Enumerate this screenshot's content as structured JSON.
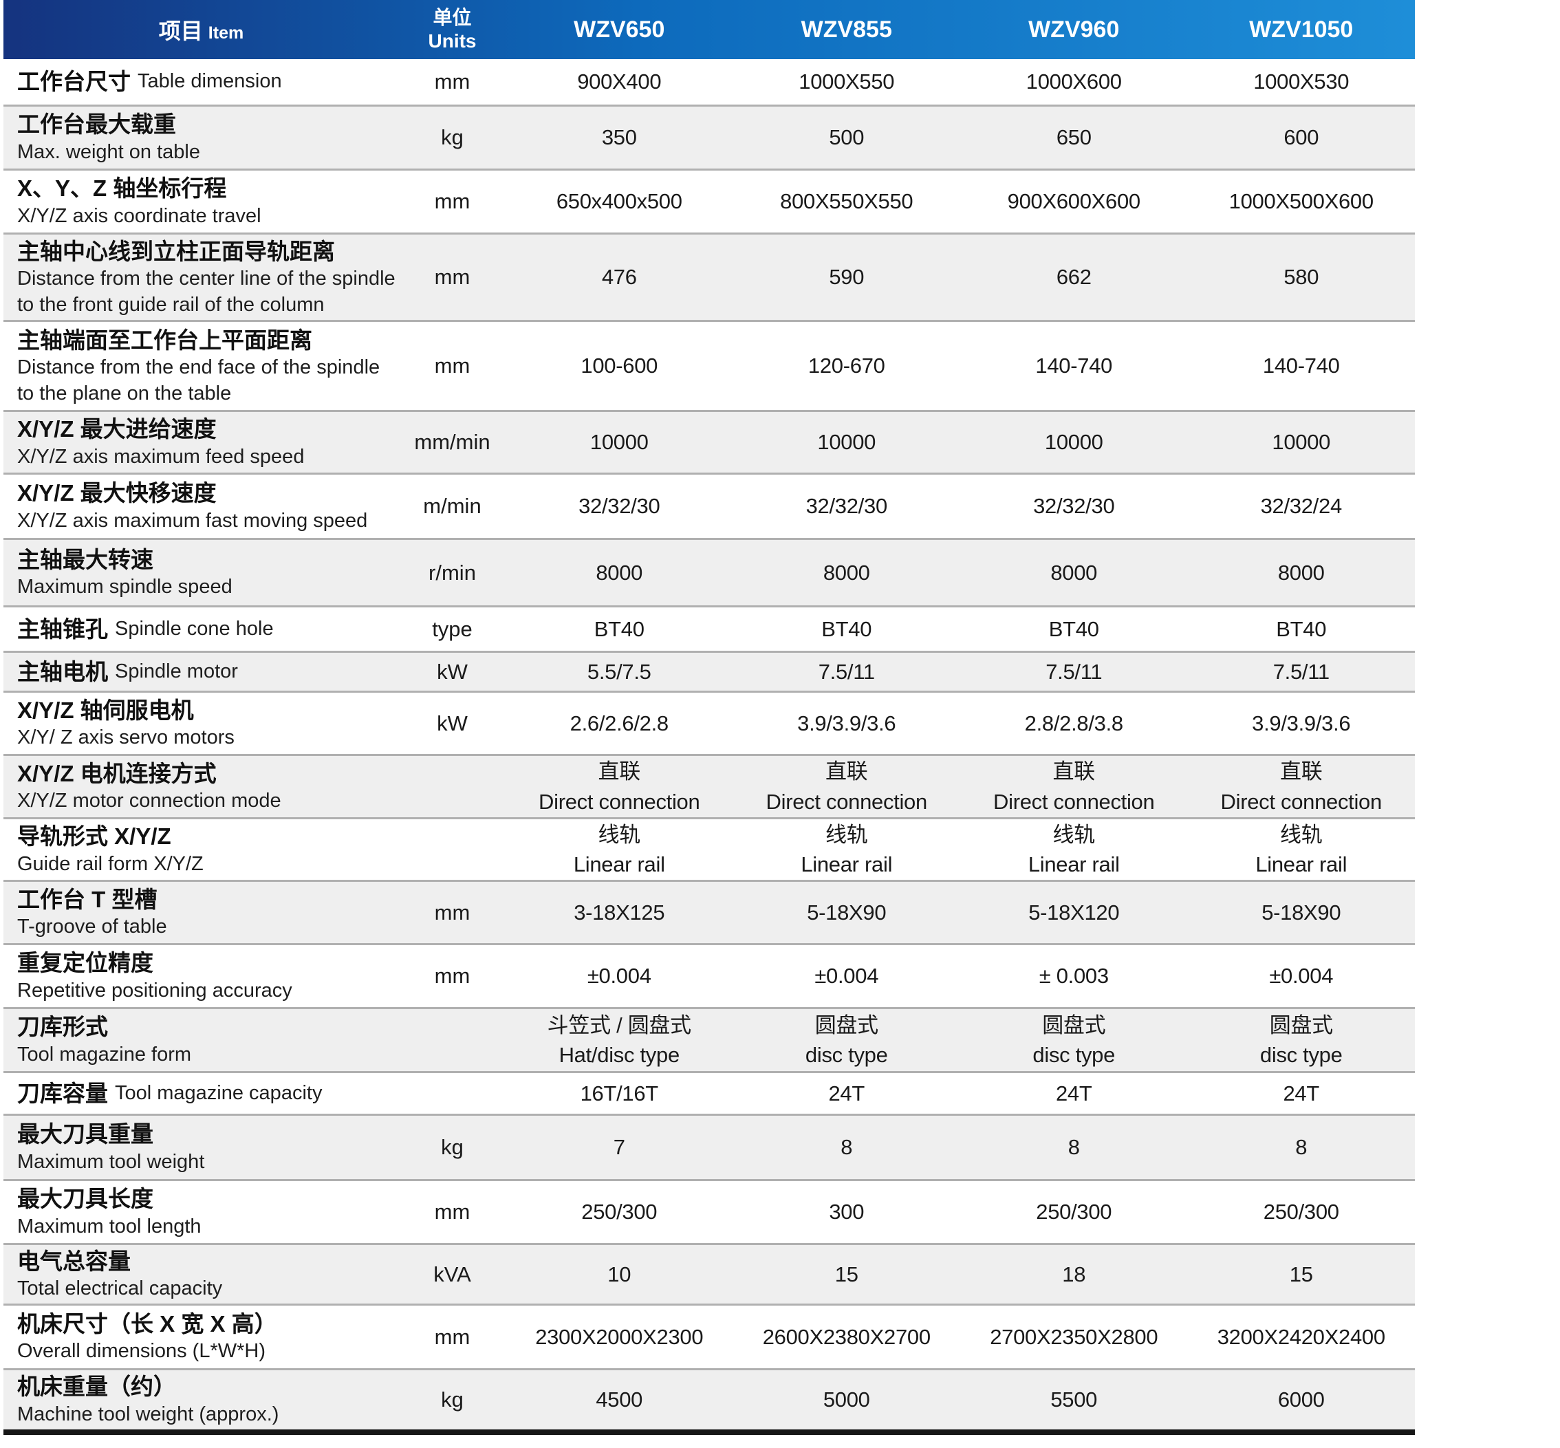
{
  "header": {
    "item_zh": "项目",
    "item_en": "Item",
    "units_zh": "单位",
    "units_en": "Units",
    "models": [
      "WZV650",
      "WZV855",
      "WZV960",
      "WZV1050"
    ]
  },
  "rows": [
    {
      "label_zh": "工作台尺寸",
      "label_en": "Table dimension",
      "unit": "mm",
      "values": [
        "900X400",
        "1000X550",
        "1000X600",
        "1000X530"
      ]
    },
    {
      "label_zh": "工作台最大载重",
      "label_en": "Max. weight on table",
      "unit": "kg",
      "values": [
        "350",
        "500",
        "650",
        "600"
      ]
    },
    {
      "label_zh": "X、Y、Z 轴坐标行程",
      "label_en": "X/Y/Z axis coordinate travel",
      "unit": "mm",
      "values": [
        "650x400x500",
        "800X550X550",
        "900X600X600",
        "1000X500X600"
      ]
    },
    {
      "label_zh": "主轴中心线到立柱正面导轨距离",
      "label_en": "Distance from the center line of the spindle\nto the front guide rail of the column",
      "unit": "mm",
      "values": [
        "476",
        "590",
        "662",
        "580"
      ]
    },
    {
      "label_zh": "主轴端面至工作台上平面距离",
      "label_en": "Distance from the end face of the spindle\nto the plane on the table",
      "unit": "mm",
      "values": [
        "100-600",
        "120-670",
        "140-740",
        "140-740"
      ]
    },
    {
      "label_zh": "X/Y/Z 最大进给速度",
      "label_en": "X/Y/Z axis maximum feed speed",
      "unit": "mm/min",
      "values": [
        "10000",
        "10000",
        "10000",
        "10000"
      ]
    },
    {
      "label_zh": "X/Y/Z 最大快移速度",
      "label_en": "X/Y/Z axis maximum fast moving speed",
      "unit": "m/min",
      "values": [
        "32/32/30",
        "32/32/30",
        "32/32/30",
        "32/32/24"
      ]
    },
    {
      "label_zh": "主轴最大转速",
      "label_en": "Maximum spindle speed",
      "unit": "r/min",
      "values": [
        "8000",
        "8000",
        "8000",
        "8000"
      ]
    },
    {
      "label_zh": "主轴锥孔",
      "label_en": "Spindle cone hole",
      "unit": "type",
      "values": [
        "BT40",
        "BT40",
        "BT40",
        "BT40"
      ]
    },
    {
      "label_zh": "主轴电机",
      "label_en": "Spindle motor",
      "unit": "kW",
      "values": [
        "5.5/7.5",
        "7.5/11",
        "7.5/11",
        "7.5/11"
      ]
    },
    {
      "label_zh": "X/Y/Z 轴伺服电机",
      "label_en": "X/Y/ Z axis servo motors",
      "unit": "kW",
      "values": [
        "2.6/2.6/2.8",
        "3.9/3.9/3.6",
        "2.8/2.8/3.8",
        "3.9/3.9/3.6"
      ]
    },
    {
      "label_zh": "X/Y/Z 电机连接方式",
      "label_en": "X/Y/Z motor connection mode",
      "unit": "",
      "values": [
        "直联\nDirect connection",
        "直联\nDirect connection",
        "直联\nDirect connection",
        "直联\nDirect connection"
      ]
    },
    {
      "label_zh": "导轨形式 X/Y/Z",
      "label_en": "Guide rail form X/Y/Z",
      "unit": "",
      "values": [
        "线轨\nLinear rail",
        "线轨\nLinear rail",
        "线轨\nLinear rail",
        "线轨\nLinear rail"
      ]
    },
    {
      "label_zh": "工作台 T 型槽",
      "label_en": "T-groove of table",
      "unit": "mm",
      "values": [
        "3-18X125",
        "5-18X90",
        "5-18X120",
        "5-18X90"
      ]
    },
    {
      "label_zh": "重复定位精度",
      "label_en": "Repetitive positioning accuracy",
      "unit": "mm",
      "values": [
        "±0.004",
        "±0.004",
        "± 0.003",
        "±0.004"
      ]
    },
    {
      "label_zh": "刀库形式",
      "label_en": "Tool magazine form",
      "unit": "",
      "values": [
        "斗笠式 / 圆盘式\nHat/disc type",
        "圆盘式\ndisc type",
        "圆盘式\ndisc type",
        "圆盘式\ndisc type"
      ]
    },
    {
      "label_zh": "刀库容量",
      "label_en": "Tool magazine capacity",
      "unit": "",
      "values": [
        "16T/16T",
        "24T",
        "24T",
        "24T"
      ]
    },
    {
      "label_zh": "最大刀具重量",
      "label_en": "Maximum tool weight",
      "unit": "kg",
      "values": [
        "7",
        "8",
        "8",
        "8"
      ]
    },
    {
      "label_zh": "最大刀具长度",
      "label_en": "Maximum tool length",
      "unit": "mm",
      "values": [
        "250/300",
        "300",
        "250/300",
        "250/300"
      ]
    },
    {
      "label_zh": "电气总容量",
      "label_en": "Total electrical capacity",
      "unit": "kVA",
      "values": [
        "10",
        "15",
        "18",
        "15"
      ]
    },
    {
      "label_zh": "机床尺寸（长 X 宽 X 高）",
      "label_en": "Overall dimensions (L*W*H)",
      "unit": "mm",
      "values": [
        "2300X2000X2300",
        "2600X2380X2700",
        "2700X2350X2800",
        "3200X2420X2400"
      ]
    },
    {
      "label_zh": "机床重量（约）",
      "label_en": "Machine tool weight (approx.)",
      "unit": "kg",
      "values": [
        "4500",
        "5000",
        "5500",
        "6000"
      ]
    }
  ]
}
